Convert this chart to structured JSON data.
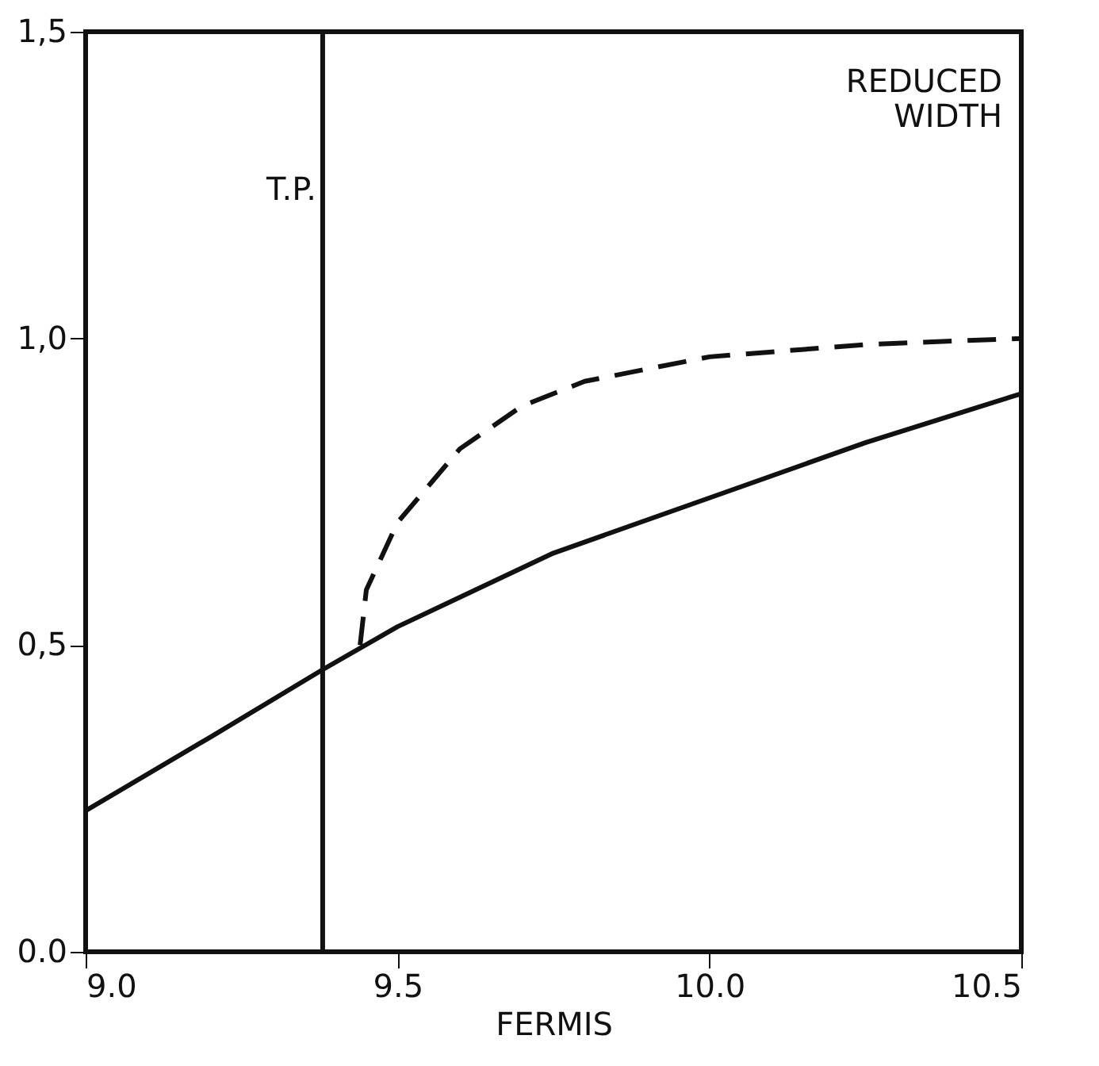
{
  "chart_data": {
    "type": "line",
    "xlabel": "FERMIS",
    "xlim": [
      9.0,
      10.5
    ],
    "ylim": [
      0.0,
      1.5
    ],
    "xticks": [
      {
        "value": 9.0,
        "label": "9.0"
      },
      {
        "value": 9.5,
        "label": "9.5"
      },
      {
        "value": 10.0,
        "label": "10.0"
      },
      {
        "value": 10.5,
        "label": "10.5"
      }
    ],
    "yticks": [
      {
        "value": 0.0,
        "label": "0.0"
      },
      {
        "value": 0.5,
        "label": "0,5"
      },
      {
        "value": 1.0,
        "label": "1,0"
      },
      {
        "value": 1.5,
        "label": "1,5"
      }
    ],
    "series": [
      {
        "color": "#111111",
        "line_style": "solid",
        "x": [
          9.0,
          9.2,
          9.38,
          9.5,
          9.75,
          10.0,
          10.25,
          10.5
        ],
        "values": [
          0.23,
          0.35,
          0.46,
          0.53,
          0.65,
          0.74,
          0.83,
          0.91
        ]
      },
      {
        "color": "#111111",
        "line_style": "dashed",
        "x": [
          9.44,
          9.45,
          9.5,
          9.6,
          9.7,
          9.8,
          10.0,
          10.25,
          10.5
        ],
        "values": [
          0.5,
          0.59,
          0.7,
          0.82,
          0.89,
          0.93,
          0.97,
          0.99,
          1.0
        ]
      }
    ],
    "ref_lines": [
      {
        "axis": "x",
        "value": 9.38,
        "label": "T.P."
      }
    ],
    "annotations": [
      "REDUCED\nWIDTH"
    ],
    "grid": false,
    "marker": "none"
  }
}
